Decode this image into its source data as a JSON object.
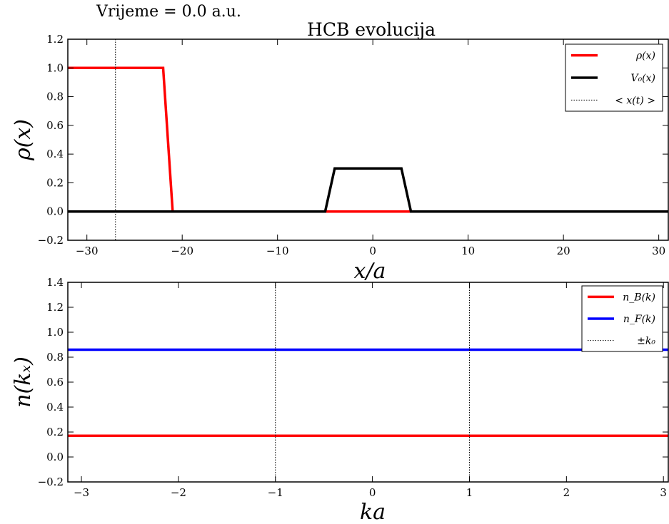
{
  "time_label": "Vrijeme = 0.0 a.u.",
  "chart_data": [
    {
      "type": "line",
      "title": "HCB evolucija",
      "xlabel": "x/a",
      "ylabel": "ρ(x)",
      "xlim": [
        -32,
        31
      ],
      "ylim": [
        -0.2,
        1.2
      ],
      "xticks": [
        -30,
        -20,
        -10,
        0,
        10,
        20,
        30
      ],
      "xtick_labels": [
        "−30",
        "−20",
        "−10",
        "0",
        "10",
        "20",
        "30"
      ],
      "yticks": [
        -0.2,
        0.0,
        0.2,
        0.4,
        0.6,
        0.8,
        1.0,
        1.2
      ],
      "ytick_labels": [
        "−0.2",
        "0.0",
        "0.2",
        "0.4",
        "0.6",
        "0.8",
        "1.0",
        "1.2"
      ],
      "legend_position": "top-right",
      "series": [
        {
          "name": "ρ(x)",
          "color": "#ff0000",
          "style": "solid",
          "x": [
            -32,
            -22,
            -21,
            31
          ],
          "y": [
            1.0,
            1.0,
            0.0,
            0.0
          ]
        },
        {
          "name": "V₀(x)",
          "color": "#000000",
          "style": "solid",
          "x": [
            -32,
            -5,
            -4,
            3,
            4,
            31
          ],
          "y": [
            0.0,
            0.0,
            0.3,
            0.3,
            0.0,
            0.0
          ]
        },
        {
          "name": "< x(t) >",
          "color": "#000000",
          "style": "dotted",
          "vlines": [
            -27
          ]
        }
      ]
    },
    {
      "type": "line",
      "title": "",
      "xlabel": "ka",
      "ylabel": "n(kₓ)",
      "xlim": [
        -3.14,
        3.05
      ],
      "ylim": [
        -0.2,
        1.4
      ],
      "xticks": [
        -3,
        -2,
        -1,
        0,
        1,
        2,
        3
      ],
      "xtick_labels": [
        "−3",
        "−2",
        "−1",
        "0",
        "1",
        "2",
        "3"
      ],
      "yticks": [
        -0.2,
        0.0,
        0.2,
        0.4,
        0.6,
        0.8,
        1.0,
        1.2,
        1.4
      ],
      "ytick_labels": [
        "−0.2",
        "0.0",
        "0.2",
        "0.4",
        "0.6",
        "0.8",
        "1.0",
        "1.2",
        "1.4"
      ],
      "legend_position": "top-right",
      "series": [
        {
          "name": "n_B(k)",
          "color": "#ff0000",
          "style": "solid",
          "x": [
            -3.14,
            3.05
          ],
          "y": [
            0.17,
            0.17
          ]
        },
        {
          "name": "n_F(k)",
          "color": "#0000ff",
          "style": "solid",
          "x": [
            -3.14,
            3.05
          ],
          "y": [
            0.86,
            0.86
          ]
        },
        {
          "name": "±k₀",
          "color": "#000000",
          "style": "dotted",
          "vlines": [
            -1,
            1
          ]
        }
      ]
    }
  ]
}
